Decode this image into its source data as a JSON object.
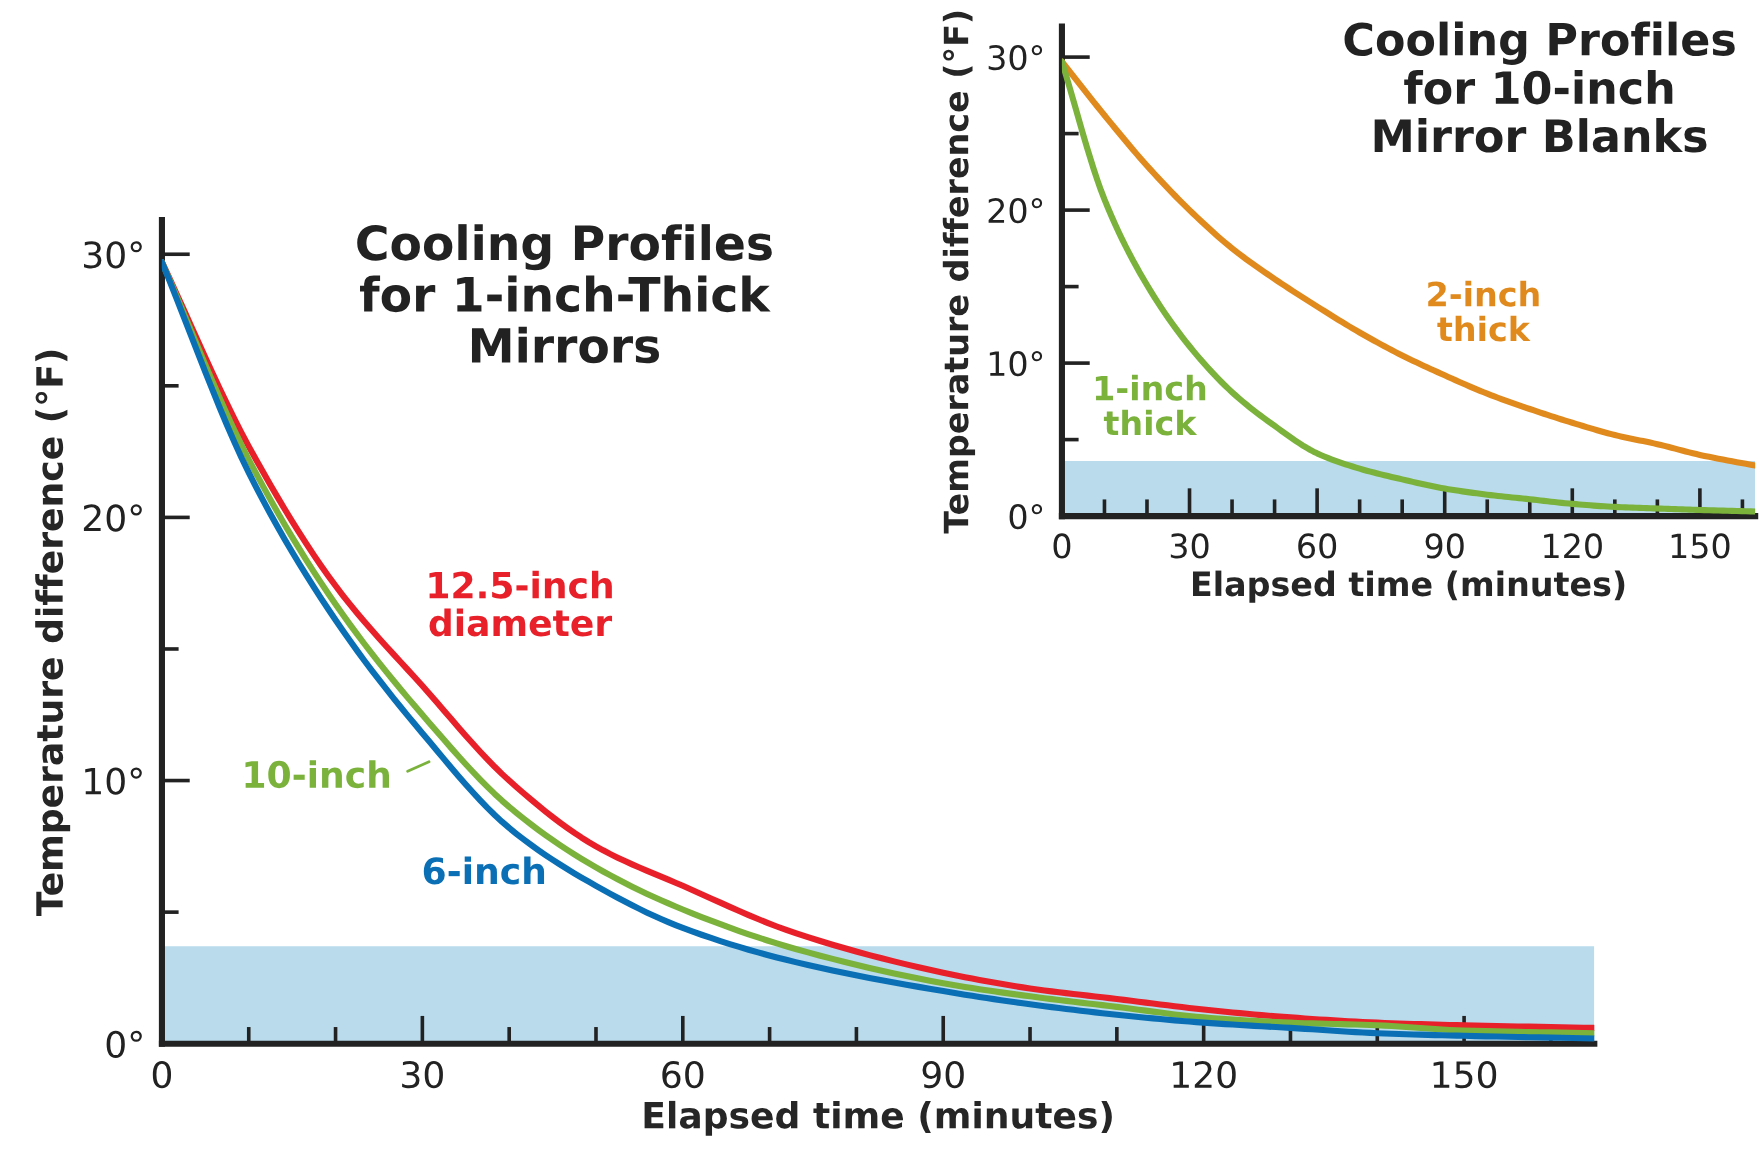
{
  "chart_data": [
    {
      "type": "line",
      "title": "Cooling Profiles\nfor 1-inch-Thick\nMirrors",
      "xlabel": "Elapsed time (minutes)",
      "ylabel": "Temperature difference (°F)",
      "x": [
        0,
        10,
        20,
        30,
        40,
        50,
        60,
        73,
        90,
        100,
        110,
        120,
        130,
        140,
        150,
        165
      ],
      "series": [
        {
          "name": "12.5-inch\ndiameter",
          "color": "#e8202a",
          "values": [
            29.7,
            22.7,
            17.4,
            13.6,
            10.0,
            7.5,
            6.0,
            4.2,
            2.7,
            2.1,
            1.7,
            1.3,
            1.0,
            0.8,
            0.7,
            0.6
          ]
        },
        {
          "name": "10-inch",
          "color": "#7ab23c",
          "values": [
            29.7,
            22.2,
            16.7,
            12.5,
            9.0,
            6.7,
            5.1,
            3.6,
            2.3,
            1.8,
            1.4,
            1.0,
            0.8,
            0.7,
            0.5,
            0.4
          ]
        },
        {
          "name": "6-inch",
          "color": "#0a6fb5",
          "values": [
            29.7,
            21.7,
            16.1,
            11.8,
            8.2,
            6.0,
            4.4,
            3.1,
            2.0,
            1.5,
            1.1,
            0.8,
            0.6,
            0.4,
            0.3,
            0.2
          ]
        }
      ],
      "xlim": [
        0,
        165
      ],
      "ylim": [
        0,
        31.3
      ],
      "xticks": [
        0,
        {
          "value": 10,
          "label": null
        },
        {
          "value": 20,
          "label": null
        },
        30,
        {
          "value": 40,
          "label": null
        },
        {
          "value": 50,
          "label": null
        },
        60,
        {
          "value": 70,
          "label": null
        },
        {
          "value": 80,
          "label": null
        },
        90,
        {
          "value": 100,
          "label": null
        },
        {
          "value": 110,
          "label": null
        },
        120,
        {
          "value": 130,
          "label": null
        },
        {
          "value": 140,
          "label": null
        },
        150,
        {
          "value": 160,
          "label": null
        }
      ],
      "yticks": [
        {
          "value": 0,
          "label": "0°"
        },
        {
          "value": 5,
          "label": null
        },
        {
          "value": 10,
          "label": "10°"
        },
        {
          "value": 15,
          "label": null
        },
        {
          "value": 20,
          "label": "20°"
        },
        {
          "value": 25,
          "label": null
        },
        {
          "value": 30,
          "label": "30°"
        }
      ],
      "bands": [
        {
          "axis": "y",
          "from": 0,
          "to": 3.7,
          "color": "#b9dbec"
        }
      ],
      "line_style": "solid",
      "grid": false
    },
    {
      "type": "line",
      "title": "Cooling Profiles\nfor 10-inch\nMirror Blanks",
      "xlabel": "Elapsed time (minutes)",
      "ylabel": "Temperature difference (°F)",
      "x": [
        0,
        10,
        20,
        30,
        40,
        50,
        60,
        70,
        80,
        90,
        100,
        110,
        120,
        130,
        140,
        150,
        163
      ],
      "series": [
        {
          "name": "2-inch\nthick",
          "color": "#e08a1e",
          "values": [
            29.7,
            26.2,
            22.9,
            20.0,
            17.5,
            15.5,
            13.7,
            12.0,
            10.5,
            9.2,
            8.0,
            7.0,
            6.1,
            5.3,
            4.7,
            4.0,
            3.3
          ]
        },
        {
          "name": "1-inch\nthick",
          "color": "#7ab23c",
          "values": [
            29.7,
            20.7,
            15.1,
            11.1,
            8.1,
            5.9,
            4.1,
            3.1,
            2.4,
            1.8,
            1.4,
            1.1,
            0.8,
            0.6,
            0.5,
            0.4,
            0.3
          ]
        }
      ],
      "xlim": [
        0,
        163
      ],
      "ylim": [
        0,
        32
      ],
      "xticks": [
        0,
        {
          "value": 10,
          "label": null
        },
        {
          "value": 20,
          "label": null
        },
        30,
        {
          "value": 40,
          "label": null
        },
        {
          "value": 50,
          "label": null
        },
        60,
        {
          "value": 70,
          "label": null
        },
        {
          "value": 80,
          "label": null
        },
        90,
        {
          "value": 100,
          "label": null
        },
        {
          "value": 110,
          "label": null
        },
        120,
        {
          "value": 130,
          "label": null
        },
        {
          "value": 140,
          "label": null
        },
        150,
        {
          "value": 160,
          "label": null
        }
      ],
      "yticks": [
        {
          "value": 0,
          "label": "0°"
        },
        {
          "value": 5,
          "label": null
        },
        {
          "value": 10,
          "label": "10°"
        },
        {
          "value": 15,
          "label": null
        },
        {
          "value": 20,
          "label": "20°"
        },
        {
          "value": 25,
          "label": null
        },
        {
          "value": 30,
          "label": "30°"
        }
      ],
      "bands": [
        {
          "axis": "y",
          "from": 0,
          "to": 3.6,
          "color": "#b9dbec"
        }
      ],
      "line_style": "solid",
      "grid": false
    }
  ]
}
